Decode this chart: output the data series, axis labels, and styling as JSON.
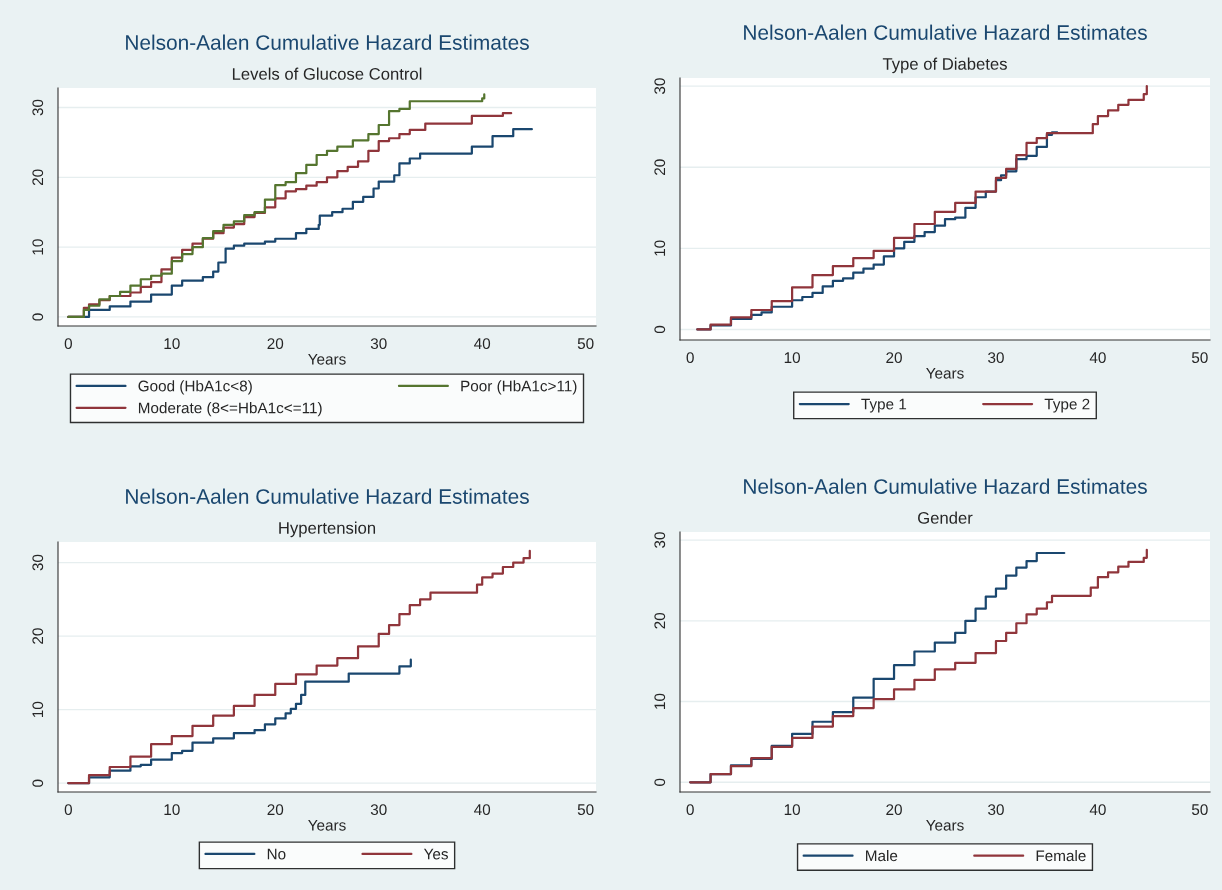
{
  "chart_data": [
    {
      "type": "step",
      "title": "Nelson-Aalen Cumulative Hazard Estimates",
      "subtitle": "Levels of Glucose Control",
      "xlabel": "Years",
      "xlim": [
        -1,
        51
      ],
      "xticks": [
        0,
        10,
        20,
        30,
        40,
        50
      ],
      "ylim": [
        -1.3,
        32.8
      ],
      "yticks": [
        0,
        10,
        20,
        30
      ],
      "grid": "y",
      "legend": "bottom",
      "line_style": "solid",
      "series": [
        {
          "name": "Good (HbA1c<8)",
          "color": "#1a476f",
          "x": [
            0,
            2,
            4,
            6,
            8,
            10,
            11,
            13,
            14,
            14.5,
            15.2,
            16,
            17,
            19,
            20,
            22,
            23,
            24.2,
            24.3,
            25.5,
            26.5,
            27.5,
            28.5,
            29.5,
            30,
            31.5,
            32,
            33,
            34,
            39,
            41,
            43,
            44.8
          ],
          "values": [
            0,
            1,
            1.5,
            2.2,
            3.2,
            4.5,
            5.2,
            5.7,
            6.5,
            7.8,
            9.8,
            10.2,
            10.5,
            10.8,
            11.2,
            12,
            12.6,
            13.2,
            14.5,
            15,
            15.5,
            16.5,
            17.2,
            18.4,
            19.4,
            20.3,
            22,
            22.7,
            23.4,
            24.4,
            25.9,
            26.9,
            26.9
          ]
        },
        {
          "name": "Moderate (8<=HbA1c<=11)",
          "color": "#90353b",
          "x": [
            0,
            1.5,
            2,
            3,
            4,
            6,
            7,
            8,
            9,
            10,
            11,
            12,
            13,
            14,
            15,
            16,
            17,
            18,
            19,
            20,
            21,
            22,
            23,
            24,
            25,
            26,
            27,
            28,
            29,
            30,
            31,
            32,
            33,
            34.5,
            39,
            42,
            42.8
          ],
          "values": [
            0,
            1.3,
            1.8,
            2.4,
            3,
            3.5,
            4.3,
            5,
            6.8,
            8.5,
            9.6,
            10.5,
            11.2,
            12,
            12.8,
            13.3,
            14.3,
            14.9,
            15.7,
            17,
            18,
            18.3,
            18.8,
            19.3,
            20,
            20.9,
            21.5,
            22.3,
            23.8,
            25.2,
            25.6,
            26.2,
            26.8,
            27.7,
            28.8,
            29.2,
            29.2
          ]
        },
        {
          "name": "Poor (HbA1c>11)",
          "color": "#55752f",
          "x": [
            0,
            1.5,
            2,
            3,
            4,
            5,
            6,
            7,
            8,
            9,
            10,
            11,
            12,
            13,
            14,
            15,
            16,
            17,
            18,
            19,
            20,
            21,
            22,
            23,
            24,
            25,
            26,
            27.5,
            29,
            30,
            31,
            32,
            33,
            40,
            40.2
          ],
          "values": [
            0,
            1,
            1.6,
            2.5,
            3,
            3.6,
            4.5,
            5.4,
            5.9,
            6.2,
            8,
            9,
            10,
            11.3,
            12.3,
            13.2,
            13.7,
            14.6,
            15,
            16.8,
            18.9,
            19.3,
            20.6,
            21.8,
            23.2,
            23.8,
            24.4,
            25.3,
            26.2,
            27.5,
            29.5,
            29.8,
            30.9,
            31.3,
            31.9
          ]
        }
      ]
    },
    {
      "type": "step",
      "title": "Nelson-Aalen Cumulative Hazard Estimates",
      "subtitle": "Type of Diabetes",
      "xlabel": "Years",
      "xlim": [
        -1,
        51
      ],
      "xticks": [
        0,
        10,
        20,
        30,
        40,
        50
      ],
      "ylim": [
        -1.3,
        31
      ],
      "yticks": [
        0,
        10,
        20,
        30
      ],
      "grid": "y",
      "legend": "bottom",
      "line_style": "solid",
      "series": [
        {
          "name": "Type 1",
          "color": "#1a476f",
          "x": [
            0.7,
            2,
            4,
            6,
            7,
            8,
            10,
            11,
            12,
            13,
            14,
            15,
            16,
            17,
            18,
            19,
            20,
            21,
            22,
            23,
            24,
            25,
            26,
            27,
            28,
            29,
            30,
            30.5,
            31,
            32,
            33,
            34,
            35,
            35.5,
            36
          ],
          "values": [
            0,
            0.5,
            1.3,
            1.8,
            2.1,
            2.8,
            3.6,
            4,
            4.5,
            5.3,
            6,
            6.3,
            7,
            7.5,
            8,
            9,
            10,
            10.8,
            11.5,
            12,
            12.8,
            13.6,
            13.8,
            15,
            16.3,
            17,
            18.4,
            19,
            19.5,
            21,
            21.4,
            22.5,
            24,
            24.3,
            24.3
          ]
        },
        {
          "name": "Type 2",
          "color": "#90353b",
          "x": [
            0.7,
            2,
            4,
            6,
            8,
            10,
            12,
            14,
            16,
            18,
            20,
            22,
            24,
            26,
            28,
            30,
            31,
            32,
            33,
            34,
            35,
            39.2,
            39.5,
            40,
            41,
            42,
            43,
            44.5,
            44.8
          ],
          "values": [
            0,
            0.6,
            1.5,
            2.4,
            3.5,
            5.2,
            6.7,
            7.8,
            8.8,
            9.7,
            11.3,
            13,
            14.5,
            15.6,
            17,
            18.7,
            19.8,
            21.5,
            23,
            23.6,
            24.2,
            24.2,
            25.3,
            26.3,
            27,
            27.7,
            28.3,
            29,
            30
          ]
        }
      ]
    },
    {
      "type": "step",
      "title": "Nelson-Aalen Cumulative Hazard Estimates",
      "subtitle": "Hypertension",
      "xlabel": "Years",
      "xlim": [
        -1,
        51
      ],
      "xticks": [
        0,
        10,
        20,
        30,
        40,
        50
      ],
      "ylim": [
        -1.2,
        32.8
      ],
      "yticks": [
        0,
        10,
        20,
        30
      ],
      "grid": "y",
      "legend": "bottom",
      "line_style": "solid",
      "series": [
        {
          "name": "No",
          "color": "#1a476f",
          "x": [
            0,
            2,
            4,
            6,
            7,
            8,
            10,
            11,
            12,
            14,
            16,
            18,
            19,
            20,
            21,
            21.5,
            22,
            22.5,
            22.9,
            27,
            27.1,
            32,
            33,
            33.1
          ],
          "values": [
            0,
            0.8,
            1.7,
            2.3,
            2.5,
            3.2,
            4.1,
            4.4,
            5.5,
            6.1,
            6.8,
            7.2,
            8,
            8.8,
            9.5,
            10.1,
            10.8,
            12,
            13.8,
            13.8,
            14.9,
            15.9,
            15.9,
            16.8
          ]
        },
        {
          "name": "Yes",
          "color": "#90353b",
          "x": [
            0,
            2,
            4,
            6,
            8,
            10,
            12,
            14,
            16,
            18,
            20,
            22,
            24,
            26,
            28,
            30,
            31,
            32,
            33,
            34,
            35,
            39,
            39.5,
            40,
            41,
            42,
            43,
            44,
            44.6
          ],
          "values": [
            0,
            1.1,
            2.2,
            3.6,
            5.3,
            6.4,
            7.8,
            9.2,
            10.5,
            12,
            13.5,
            14.8,
            16,
            17,
            18.6,
            20.3,
            21.5,
            23,
            24.2,
            25,
            25.9,
            25.9,
            27,
            28,
            28.5,
            29.4,
            30,
            30.6,
            31.6
          ]
        }
      ]
    },
    {
      "type": "step",
      "title": "Nelson-Aalen Cumulative Hazard Estimates",
      "subtitle": "Gender",
      "xlabel": "Years",
      "xlim": [
        -1,
        51
      ],
      "xticks": [
        0,
        10,
        20,
        30,
        40,
        50
      ],
      "ylim": [
        -1.2,
        31
      ],
      "yticks": [
        0,
        10,
        20,
        30
      ],
      "grid": "y",
      "legend": "bottom",
      "line_style": "solid",
      "series": [
        {
          "name": "Male",
          "color": "#1a476f",
          "x": [
            0,
            2,
            4,
            6,
            8,
            10,
            12,
            14,
            16,
            18,
            20,
            22,
            24,
            26,
            27,
            28,
            29,
            30,
            31,
            32,
            33,
            34,
            36.7
          ],
          "values": [
            0,
            1,
            2.1,
            2.9,
            4.5,
            6,
            7.5,
            8.7,
            10.5,
            12.8,
            14.5,
            16.2,
            17.3,
            18.5,
            20,
            21.5,
            23,
            24,
            25.6,
            26.6,
            27.4,
            28.4,
            28.4
          ]
        },
        {
          "name": "Female",
          "color": "#90353b",
          "x": [
            0,
            2,
            4,
            6,
            8,
            10,
            12,
            14,
            16,
            18,
            20,
            22,
            24,
            26,
            28,
            30,
            31,
            32,
            33,
            34,
            35,
            35.5,
            39,
            39.3,
            40,
            41,
            42,
            43,
            44.5,
            44.8
          ],
          "values": [
            0,
            1,
            2,
            3,
            4.4,
            5.5,
            6.9,
            8.2,
            9.2,
            10.3,
            11.5,
            12.7,
            14,
            14.8,
            16,
            17.5,
            18.5,
            19.7,
            20.8,
            21.5,
            22.3,
            23.1,
            23.1,
            24.1,
            25.4,
            26,
            26.7,
            27.3,
            27.8,
            28.8
          ]
        }
      ]
    }
  ]
}
